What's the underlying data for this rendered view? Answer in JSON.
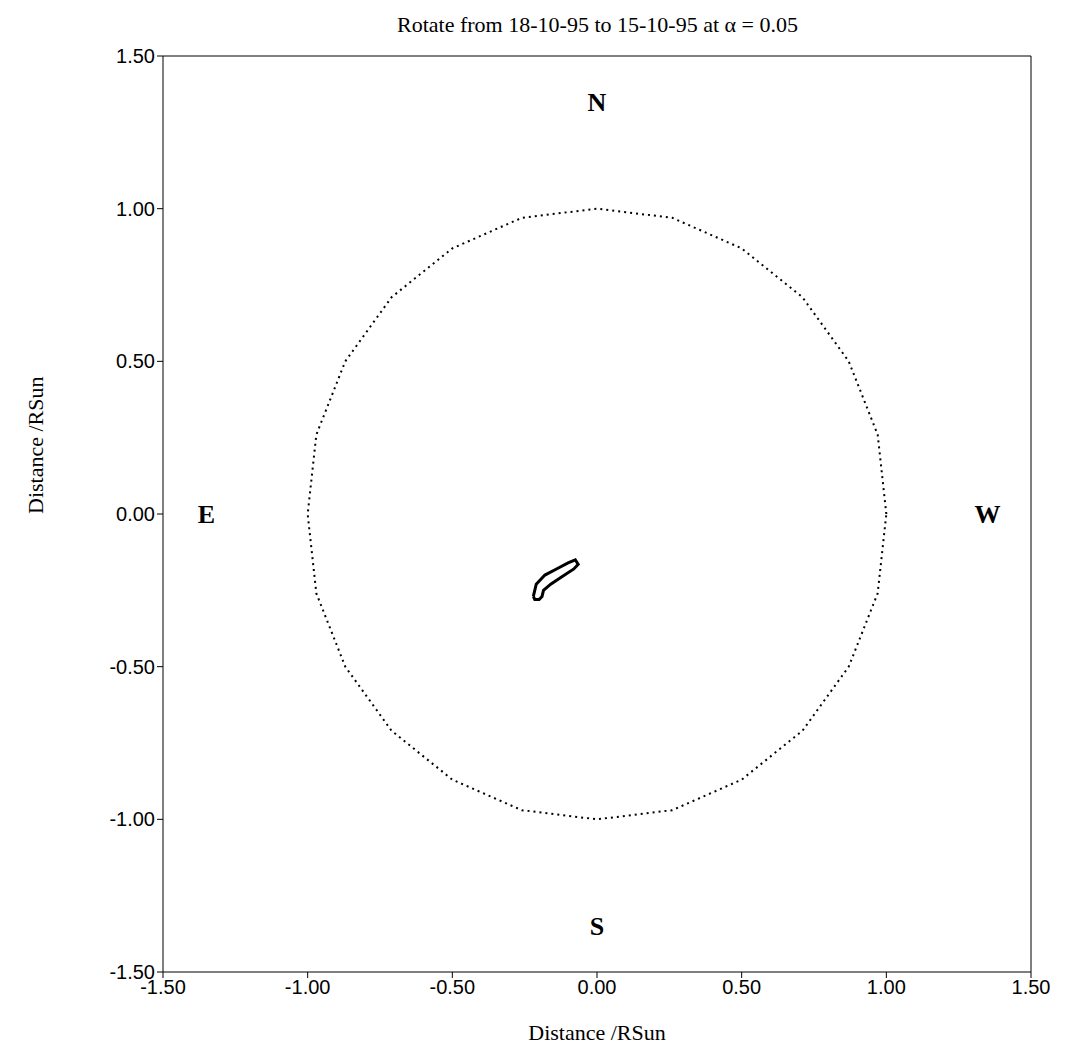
{
  "chart_data": {
    "type": "line",
    "title": "Rotate from 18-10-95 to 15-10-95 at α = 0.05",
    "x_label": "Distance /RSun",
    "y_label": "Distance /RSun",
    "xlim": [
      -1.5,
      1.5
    ],
    "ylim": [
      -1.5,
      1.5
    ],
    "xticks": [
      {
        "value": -1.5,
        "label": "-1.50"
      },
      {
        "value": -1.0,
        "label": "-1.00"
      },
      {
        "value": -0.5,
        "label": "-0.50"
      },
      {
        "value": 0,
        "label": "0.00"
      },
      {
        "value": 0.5,
        "label": "0.50"
      },
      {
        "value": 1.0,
        "label": "1.00"
      },
      {
        "value": 1.5,
        "label": "1.50"
      }
    ],
    "yticks": [
      {
        "value": -1.5,
        "label": "-1.50"
      },
      {
        "value": -1.0,
        "label": "-1.00"
      },
      {
        "value": -0.5,
        "label": "-0.50"
      },
      {
        "value": 0,
        "label": "0.00"
      },
      {
        "value": 0.5,
        "label": "0.50"
      },
      {
        "value": 1.0,
        "label": "1.00"
      },
      {
        "value": 1.5,
        "label": "1.50"
      }
    ],
    "grid": false,
    "series": [
      {
        "color": "#000000",
        "line_style": "dotted",
        "x": [
          1,
          0.97,
          0.87,
          0.71,
          0.5,
          0.26,
          0,
          -0.26,
          -0.5,
          -0.71,
          -0.87,
          -0.97,
          -1,
          -0.97,
          -0.87,
          -0.71,
          -0.5,
          -0.26,
          0,
          0.26,
          0.5,
          0.71,
          0.87,
          0.97,
          1
        ],
        "y": [
          0,
          0.26,
          0.5,
          0.71,
          0.87,
          0.97,
          1,
          0.97,
          0.87,
          0.71,
          0.5,
          0.26,
          0,
          -0.26,
          -0.5,
          -0.71,
          -0.87,
          -0.97,
          -1,
          -0.97,
          -0.87,
          -0.71,
          -0.5,
          -0.26,
          0
        ]
      },
      {
        "color": "#000000",
        "line_style": "solid",
        "x": [
          -0.22,
          -0.21,
          -0.18,
          -0.14,
          -0.1,
          -0.075,
          -0.065,
          -0.08,
          -0.12,
          -0.16,
          -0.185,
          -0.19,
          -0.2,
          -0.215,
          -0.22
        ],
        "y": [
          -0.27,
          -0.23,
          -0.2,
          -0.18,
          -0.16,
          -0.15,
          -0.165,
          -0.18,
          -0.205,
          -0.23,
          -0.25,
          -0.27,
          -0.28,
          -0.28,
          -0.27
        ]
      }
    ],
    "annotations": [
      {
        "text": "N",
        "x": 0,
        "y": 1.35
      },
      {
        "text": "S",
        "x": 0,
        "y": -1.35
      },
      {
        "text": "E",
        "x": -1.35,
        "y": 0
      },
      {
        "text": "W",
        "x": 1.35,
        "y": 0
      }
    ]
  }
}
